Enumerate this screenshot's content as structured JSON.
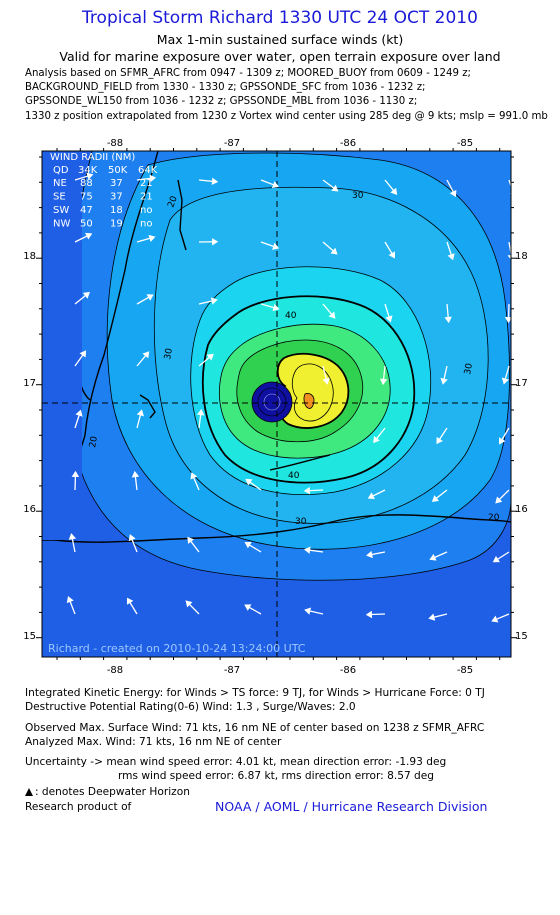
{
  "header": {
    "title": "Tropical Storm Richard 1330 UTC 24 OCT 2010",
    "subtitle": "Max 1-min sustained surface winds (kt)",
    "validity": "Valid for marine exposure over water, open terrain exposure over land"
  },
  "analysis_lines": [
    "Analysis based on SFMR_AFRC from 0947 - 1309 z; MOORED_BUOY from 0609 - 1249 z;",
    "BACKGROUND_FIELD from 1330 - 1330 z; GPSSONDE_SFC from 1036 - 1232 z;",
    "GPSSONDE_WL150 from 1036 - 1232 z; GPSSONDE_MBL from 1036 - 1130 z;",
    "1330 z position extrapolated from 1230 z Vortex wind center using 285 deg @ 9 kts; mslp = 991.0 mb"
  ],
  "map": {
    "x_ticks": [
      "-88",
      "-87",
      "-86",
      "-85"
    ],
    "y_ticks": [
      "18",
      "17",
      "16",
      "15"
    ],
    "contour_labels": [
      "30",
      "40",
      "40",
      "30",
      "30",
      "20",
      "20",
      "30",
      "20"
    ],
    "credit": "Richard - created on 2010-10-24 13:24:00 UTC",
    "wind_radii": {
      "header": [
        "WIND RADII (NM)"
      ],
      "columns": [
        "QD",
        "34K",
        "50K",
        "64K"
      ],
      "rows": [
        [
          "NE",
          "88",
          "37",
          "21"
        ],
        [
          "SE",
          "75",
          "37",
          "21"
        ],
        [
          "SW",
          "47",
          "18",
          "no"
        ],
        [
          "NW",
          "50",
          "19",
          "no"
        ]
      ]
    },
    "colors": {
      "ocean_outer": "#1e5fe6",
      "ring_20": "#1e7ff0",
      "ring_30": "#16a6f2",
      "ring_35": "#18d2f2",
      "ring_40": "#1af0d8",
      "ring_45": "#3ee87a",
      "ring_50": "#9ae83a",
      "ring_60": "#f0f028",
      "ring_65": "#f09020",
      "eye": "#1010a0"
    }
  },
  "footer": {
    "ike": "Integrated Kinetic Energy:  for Winds > TS force: 9 TJ,  for Winds > Hurricane Force: 0 TJ",
    "dpr": "Destructive Potential Rating(0-6)  Wind: 1.3 , Surge/Waves: 2.0",
    "obs_max": "Observed Max. Surface Wind: 71 kts, 16 nm NE of center based on 1238 z SFMR_AFRC",
    "an_max": "Analyzed Max. Wind: 71 kts, 16 nm NE of center",
    "unc1": "Uncertainty -> mean wind speed error: 4.01 kt,   mean direction error:  -1.93 deg",
    "unc2": "rms wind speed error: 6.87 kt,   rms direction error: 8.57 deg",
    "legend": ": denotes Deepwater Horizon",
    "research": "Research product of",
    "link": "NOAA / AOML / Hurricane Research Division"
  }
}
